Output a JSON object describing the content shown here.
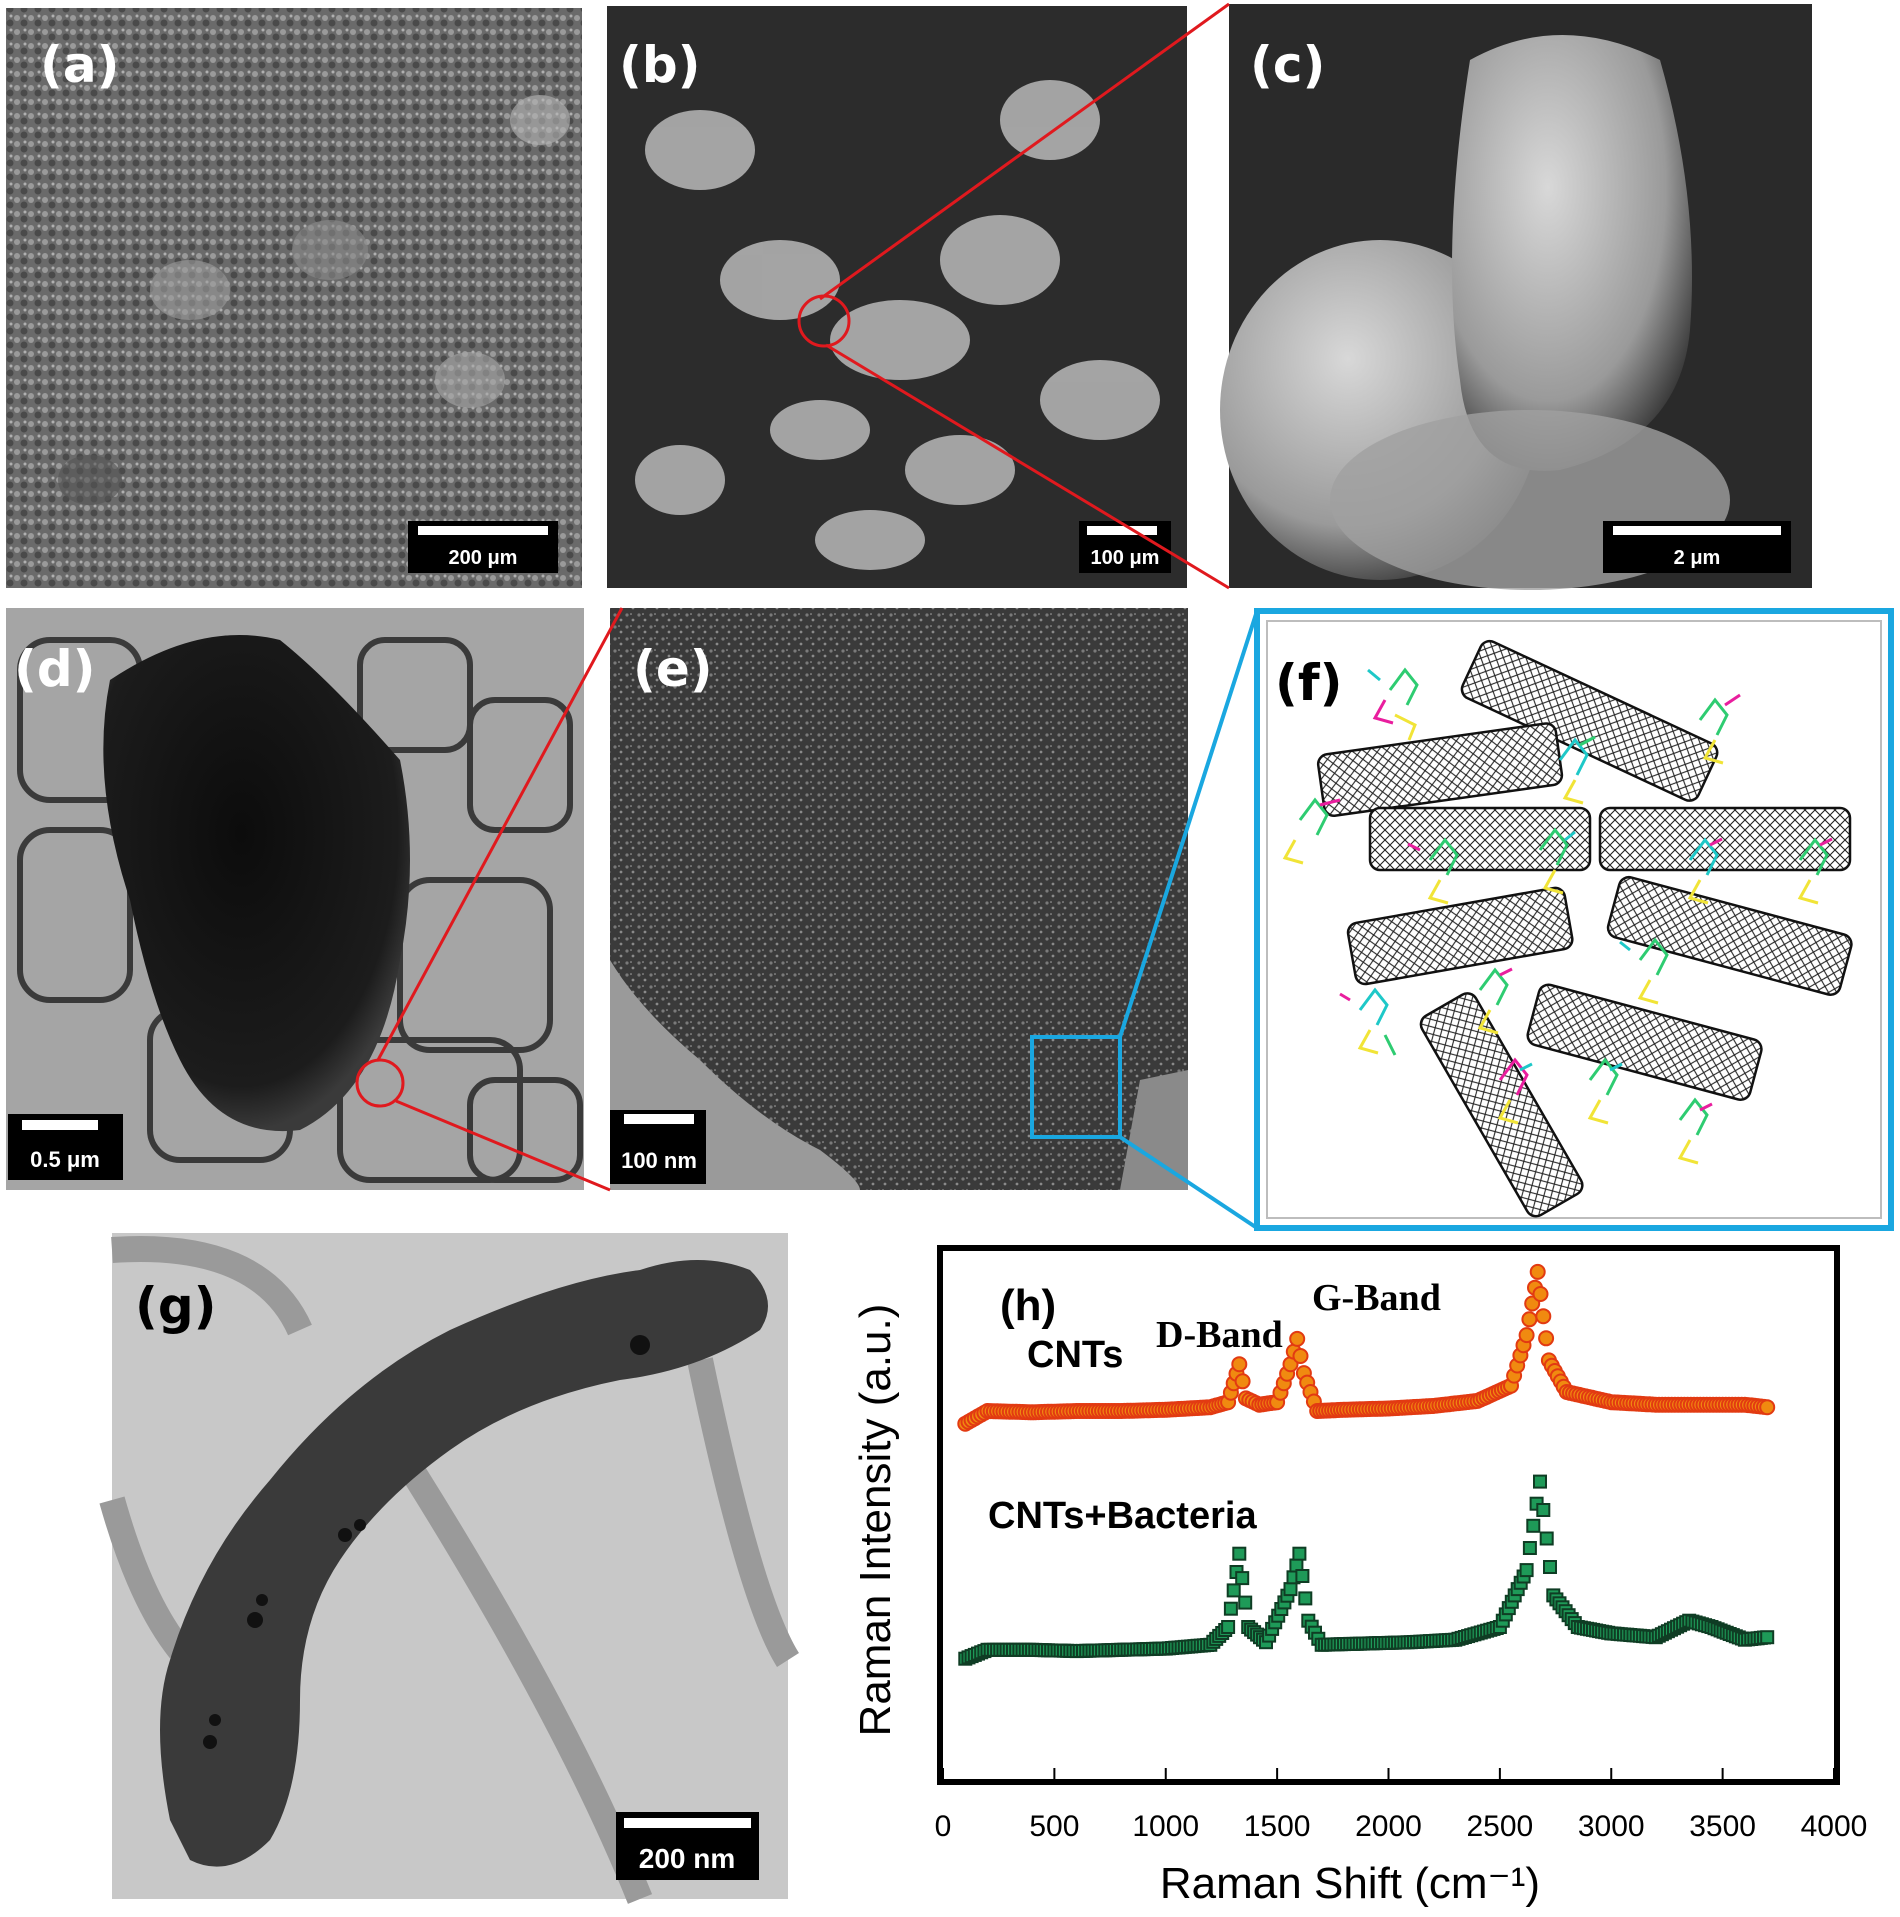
{
  "panels": {
    "a": {
      "label": "(a)",
      "scale_bar": "200 μm"
    },
    "b": {
      "label": "(b)",
      "scale_bar": "100 μm"
    },
    "c": {
      "label": "(c)",
      "scale_bar": "2 μm"
    },
    "d": {
      "label": "(d)",
      "scale_bar": "0.5 μm"
    },
    "e": {
      "label": "(e)",
      "scale_bar": "100 nm"
    },
    "f": {
      "label": "(f)"
    },
    "g": {
      "label": "(g)",
      "scale_bar": "200 nm"
    }
  },
  "colors": {
    "zoom_line": "#e0191e",
    "inset_box": "#1aa7e0",
    "cnt_series": "#f08a10",
    "cnt_bacteria_series": "#1e9a58"
  },
  "chart_data": {
    "type": "scatter",
    "panel_label": "(h)",
    "xlabel": "Raman Shift (cm⁻¹)",
    "ylabel": "Raman Intensity (a.u.)",
    "xlim": [
      0,
      4000
    ],
    "xticks": [
      "0",
      "500",
      "1000",
      "1500",
      "2000",
      "2500",
      "3000",
      "3500",
      "4000"
    ],
    "yticks": [],
    "annotations": [
      "D-Band",
      "G-Band"
    ],
    "series": [
      {
        "name": "CNTs",
        "offset": 1.0,
        "points": [
          [
            100,
            0.05
          ],
          [
            200,
            0.15
          ],
          [
            400,
            0.14
          ],
          [
            600,
            0.15
          ],
          [
            800,
            0.15
          ],
          [
            1000,
            0.16
          ],
          [
            1200,
            0.18
          ],
          [
            1280,
            0.22
          ],
          [
            1330,
            0.52
          ],
          [
            1360,
            0.25
          ],
          [
            1420,
            0.2
          ],
          [
            1500,
            0.22
          ],
          [
            1560,
            0.52
          ],
          [
            1590,
            0.72
          ],
          [
            1620,
            0.45
          ],
          [
            1680,
            0.15
          ],
          [
            1800,
            0.16
          ],
          [
            2000,
            0.17
          ],
          [
            2200,
            0.19
          ],
          [
            2400,
            0.23
          ],
          [
            2550,
            0.35
          ],
          [
            2620,
            0.75
          ],
          [
            2670,
            1.25
          ],
          [
            2720,
            0.55
          ],
          [
            2800,
            0.3
          ],
          [
            3000,
            0.22
          ],
          [
            3200,
            0.2
          ],
          [
            3400,
            0.2
          ],
          [
            3600,
            0.2
          ],
          [
            3700,
            0.18
          ]
        ]
      },
      {
        "name": "CNTs+Bacteria",
        "offset": 0.0,
        "points": [
          [
            100,
            0.05
          ],
          [
            200,
            0.12
          ],
          [
            400,
            0.12
          ],
          [
            600,
            0.11
          ],
          [
            800,
            0.12
          ],
          [
            1000,
            0.13
          ],
          [
            1200,
            0.16
          ],
          [
            1280,
            0.3
          ],
          [
            1330,
            0.88
          ],
          [
            1370,
            0.3
          ],
          [
            1450,
            0.18
          ],
          [
            1560,
            0.6
          ],
          [
            1600,
            0.88
          ],
          [
            1640,
            0.35
          ],
          [
            1700,
            0.16
          ],
          [
            1900,
            0.17
          ],
          [
            2100,
            0.18
          ],
          [
            2300,
            0.2
          ],
          [
            2500,
            0.3
          ],
          [
            2620,
            0.75
          ],
          [
            2680,
            1.45
          ],
          [
            2740,
            0.55
          ],
          [
            2850,
            0.3
          ],
          [
            3000,
            0.25
          ],
          [
            3200,
            0.22
          ],
          [
            3350,
            0.35
          ],
          [
            3450,
            0.3
          ],
          [
            3600,
            0.2
          ],
          [
            3700,
            0.22
          ]
        ]
      }
    ]
  }
}
